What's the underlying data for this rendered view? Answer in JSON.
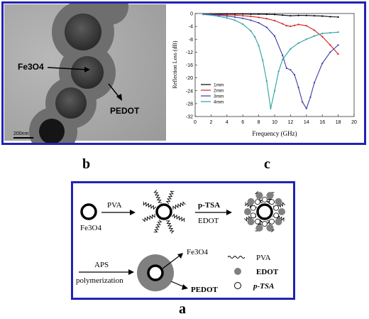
{
  "panel_b": {
    "core_label": "Fe3O4",
    "shell_label": "PEDOT",
    "scale_bar": "200nm"
  },
  "panel_labels": {
    "a": "a",
    "b": "b",
    "c": "c"
  },
  "chart_data": {
    "type": "line",
    "xlabel": "Frequency (GHz)",
    "ylabel": "Reflection Loss (dB)",
    "xlim": [
      0,
      20
    ],
    "ylim": [
      -32,
      0
    ],
    "xticks": [
      0,
      2,
      4,
      6,
      8,
      10,
      12,
      14,
      16,
      18,
      20
    ],
    "yticks": [
      0,
      -4,
      -8,
      -12,
      -16,
      -20,
      -24,
      -28,
      -32
    ],
    "legend_position": "lower-left",
    "series": [
      {
        "name": "1mm",
        "color": "#000000",
        "x": [
          1,
          2,
          3,
          4,
          5,
          6,
          7,
          8,
          9,
          10,
          11,
          12,
          13,
          14,
          15,
          16,
          17,
          18
        ],
        "y": [
          -0.1,
          -0.1,
          -0.1,
          -0.1,
          -0.15,
          -0.15,
          -0.2,
          -0.2,
          -0.25,
          -0.3,
          -0.5,
          -0.7,
          -0.6,
          -0.6,
          -0.7,
          -0.8,
          -1.0,
          -1.1
        ]
      },
      {
        "name": "2mm",
        "color": "#d22020",
        "x": [
          1,
          2,
          3,
          4,
          5,
          6,
          7,
          8,
          9,
          10,
          11,
          11.5,
          12,
          12.5,
          13,
          14,
          15,
          16,
          17,
          18
        ],
        "y": [
          -0.1,
          -0.2,
          -0.3,
          -0.4,
          -0.5,
          -0.7,
          -0.9,
          -1.2,
          -1.6,
          -2.2,
          -3.2,
          -3.8,
          -4.0,
          -3.7,
          -3.4,
          -3.8,
          -5.2,
          -7.2,
          -9.8,
          -12.6
        ]
      },
      {
        "name": "3mm",
        "color": "#3c3ca8",
        "x": [
          1,
          2,
          3,
          4,
          5,
          6,
          7,
          8,
          9,
          10,
          11,
          11.5,
          12,
          12.5,
          13,
          13.5,
          14,
          14.5,
          15,
          16,
          17,
          18
        ],
        "y": [
          -0.2,
          -0.3,
          -0.5,
          -0.8,
          -1.1,
          -1.5,
          -2.1,
          -2.9,
          -4.3,
          -7.0,
          -13.0,
          -17.0,
          -17.5,
          -19.0,
          -23.0,
          -27.5,
          -29.5,
          -26.0,
          -21.5,
          -15.5,
          -12.0,
          -9.8
        ]
      },
      {
        "name": "4mm",
        "color": "#2fa0a0",
        "x": [
          1,
          2,
          3,
          4,
          5,
          6,
          7,
          7.5,
          8,
          8.5,
          9,
          9.5,
          10,
          10.5,
          11,
          12,
          13,
          14,
          15,
          16,
          17,
          18
        ],
        "y": [
          -0.3,
          -0.5,
          -0.9,
          -1.4,
          -2.1,
          -3.3,
          -5.4,
          -7.2,
          -10.0,
          -14.5,
          -21.0,
          -29.5,
          -24.0,
          -18.0,
          -14.3,
          -11.0,
          -9.2,
          -8.0,
          -7.0,
          -6.2,
          -6.0,
          -5.8
        ]
      }
    ]
  },
  "scheme": {
    "core_label": "Fe3O4",
    "step1_reagent": "PVA",
    "step2_reagent_top": "p-TSA",
    "step2_reagent_bottom": "EDOT",
    "step3_reagent_top": "APS",
    "step3_reagent_bottom": "polymerization",
    "product_core_label": "Fe3O4",
    "product_shell_label": "PEDOT",
    "legend_pva": "PVA",
    "legend_edot": "EDOT",
    "legend_ptsa": "p-TSA"
  }
}
